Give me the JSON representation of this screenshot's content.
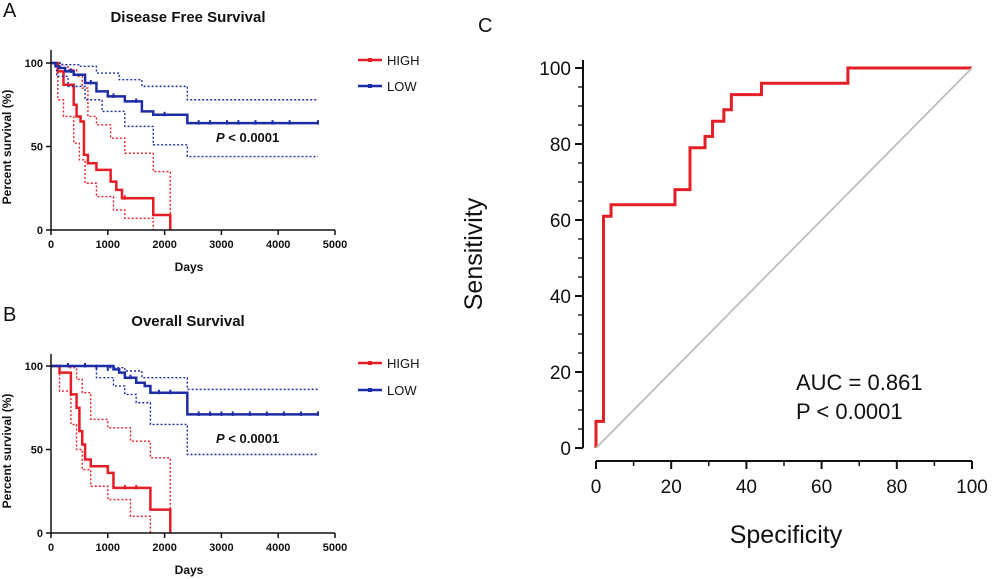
{
  "panels": {
    "a": "A",
    "b": "B",
    "c": "C"
  },
  "colors": {
    "high": "#e41e26",
    "low": "#1d2ca6",
    "diagonal": "#bdbdbd",
    "axis": "#111111"
  },
  "chart_data": [
    {
      "id": "km_dfs",
      "type": "line",
      "title": "Disease Free Survival",
      "xlabel": "Days",
      "ylabel": "Percent survival (%)",
      "xlim": [
        0,
        5000
      ],
      "ylim": [
        0,
        100
      ],
      "xticks": [
        0,
        1000,
        2000,
        3000,
        4000,
        5000
      ],
      "yticks": [
        0,
        50,
        100
      ],
      "annotation": {
        "prefix": "P",
        "rest": " < 0.0001"
      },
      "legend_labels": [
        "HIGH",
        "LOW"
      ],
      "series": [
        {
          "name": "HIGH",
          "color": "#e41e26",
          "style": "step",
          "x": [
            0,
            120,
            220,
            400,
            450,
            520,
            580,
            650,
            800,
            1050,
            1150,
            1250,
            1800,
            2100,
            2100
          ],
          "y": [
            100,
            95,
            87,
            75,
            68,
            65,
            45,
            40,
            36,
            29,
            24,
            19,
            9,
            9,
            0
          ],
          "censor": [
            [
              1300,
              19
            ]
          ]
        },
        {
          "name": "HIGH CI upper",
          "color": "#e41e26",
          "style": "step-dotted",
          "x": [
            0,
            150,
            300,
            450,
            550,
            650,
            800,
            1050,
            1300,
            1800,
            2100,
            2100
          ],
          "y": [
            100,
            99,
            96,
            92,
            85,
            68,
            63,
            55,
            46,
            35,
            35,
            0
          ]
        },
        {
          "name": "HIGH CI lower",
          "color": "#e41e26",
          "style": "step-dotted",
          "x": [
            0,
            120,
            220,
            400,
            500,
            600,
            800,
            1100,
            1300,
            1800,
            1800
          ],
          "y": [
            100,
            78,
            68,
            52,
            42,
            28,
            20,
            12,
            7,
            2,
            0
          ]
        },
        {
          "name": "LOW",
          "color": "#1d2ca6",
          "style": "step",
          "x": [
            0,
            80,
            150,
            250,
            400,
            600,
            800,
            1000,
            1300,
            1600,
            1800,
            2400,
            4700
          ],
          "y": [
            100,
            98,
            97,
            95,
            93,
            88,
            83,
            80,
            77,
            71,
            69,
            64,
            64
          ],
          "censor": [
            [
              350,
              95
            ],
            [
              700,
              88
            ],
            [
              1100,
              80
            ],
            [
              1500,
              77
            ],
            [
              2000,
              69
            ],
            [
              2600,
              64
            ],
            [
              2800,
              64
            ],
            [
              3100,
              64
            ],
            [
              3300,
              64
            ],
            [
              3600,
              64
            ],
            [
              3900,
              64
            ],
            [
              4200,
              64
            ],
            [
              4700,
              64
            ]
          ]
        },
        {
          "name": "LOW CI upper",
          "color": "#1d2ca6",
          "style": "step-dotted",
          "x": [
            0,
            200,
            500,
            800,
            1200,
            1600,
            2400,
            4700
          ],
          "y": [
            100,
            99,
            98,
            94,
            90,
            86,
            78,
            78
          ]
        },
        {
          "name": "LOW CI lower",
          "color": "#1d2ca6",
          "style": "step-dotted",
          "x": [
            0,
            100,
            300,
            600,
            900,
            1300,
            1800,
            2400,
            4700
          ],
          "y": [
            100,
            92,
            86,
            78,
            71,
            62,
            51,
            44,
            44
          ]
        }
      ]
    },
    {
      "id": "km_os",
      "type": "line",
      "title": "Overall Survival",
      "xlabel": "Days",
      "ylabel": "Percent survival (%)",
      "xlim": [
        0,
        5000
      ],
      "ylim": [
        0,
        100
      ],
      "xticks": [
        0,
        1000,
        2000,
        3000,
        4000,
        5000
      ],
      "yticks": [
        0,
        50,
        100
      ],
      "annotation": {
        "prefix": "P",
        "rest": " < 0.0001"
      },
      "legend_labels": [
        "HIGH",
        "LOW"
      ],
      "series": [
        {
          "name": "HIGH",
          "color": "#e41e26",
          "style": "step",
          "x": [
            0,
            150,
            350,
            450,
            500,
            550,
            600,
            700,
            1000,
            1100,
            1750,
            2100,
            2100
          ],
          "y": [
            100,
            96,
            83,
            75,
            61,
            53,
            44,
            40,
            36,
            27,
            14,
            14,
            0
          ],
          "censor": [
            [
              1300,
              27
            ],
            [
              1500,
              27
            ]
          ]
        },
        {
          "name": "HIGH CI upper",
          "color": "#e41e26",
          "style": "step-dotted",
          "x": [
            0,
            300,
            450,
            550,
            700,
            1000,
            1400,
            1750,
            2100,
            2100
          ],
          "y": [
            100,
            99,
            92,
            84,
            68,
            63,
            55,
            45,
            45,
            0
          ]
        },
        {
          "name": "HIGH CI lower",
          "color": "#e41e26",
          "style": "step-dotted",
          "x": [
            0,
            150,
            350,
            450,
            550,
            700,
            1000,
            1400,
            1750,
            1750
          ],
          "y": [
            100,
            85,
            65,
            50,
            38,
            28,
            20,
            10,
            5,
            0
          ]
        },
        {
          "name": "LOW",
          "color": "#1d2ca6",
          "style": "step",
          "x": [
            0,
            1100,
            1200,
            1300,
            1500,
            1650,
            1750,
            2400,
            4700
          ],
          "y": [
            100,
            98,
            96,
            93,
            90,
            88,
            84,
            71,
            71
          ],
          "censor": [
            [
              300,
              100
            ],
            [
              600,
              100
            ],
            [
              800,
              99
            ],
            [
              1000,
              98
            ],
            [
              1400,
              93
            ],
            [
              1900,
              84
            ],
            [
              2100,
              84
            ],
            [
              2600,
              71
            ],
            [
              2800,
              71
            ],
            [
              3000,
              71
            ],
            [
              3200,
              71
            ],
            [
              3500,
              71
            ],
            [
              3800,
              71
            ],
            [
              4100,
              71
            ],
            [
              4400,
              71
            ],
            [
              4700,
              71
            ]
          ]
        },
        {
          "name": "LOW CI upper",
          "color": "#1d2ca6",
          "style": "step-dotted",
          "x": [
            0,
            1000,
            1300,
            1600,
            2400,
            4700
          ],
          "y": [
            100,
            99,
            97,
            93,
            86,
            86
          ]
        },
        {
          "name": "LOW CI lower",
          "color": "#1d2ca6",
          "style": "step-dotted",
          "x": [
            0,
            800,
            1100,
            1300,
            1500,
            1750,
            2400,
            4700
          ],
          "y": [
            100,
            93,
            88,
            83,
            78,
            65,
            47,
            47
          ]
        }
      ]
    },
    {
      "id": "roc",
      "type": "line",
      "title": "",
      "xlabel": "Specificity",
      "ylabel": "Sensitivity",
      "xlim": [
        0,
        100
      ],
      "ylim": [
        0,
        100
      ],
      "xticks": [
        0,
        20,
        40,
        60,
        80,
        100
      ],
      "yticks": [
        0,
        20,
        40,
        60,
        80,
        100
      ],
      "annotations": [
        "AUC = 0.861",
        "P < 0.0001"
      ],
      "series": [
        {
          "name": "ROC",
          "color": "#e41e26",
          "style": "step",
          "x": [
            0,
            0,
            2,
            2,
            4,
            4,
            21,
            21,
            25,
            25,
            29,
            29,
            31,
            31,
            34,
            34,
            36,
            36,
            44,
            44,
            52,
            52,
            67,
            67,
            100
          ],
          "y": [
            0,
            7,
            7,
            61,
            61,
            64,
            64,
            68,
            68,
            79,
            79,
            82,
            82,
            86,
            86,
            89,
            89,
            93,
            93,
            96,
            96,
            96,
            96,
            100,
            100
          ]
        },
        {
          "name": "Reference",
          "color": "#bdbdbd",
          "style": "line",
          "x": [
            0,
            100
          ],
          "y": [
            0,
            100
          ]
        }
      ]
    }
  ]
}
